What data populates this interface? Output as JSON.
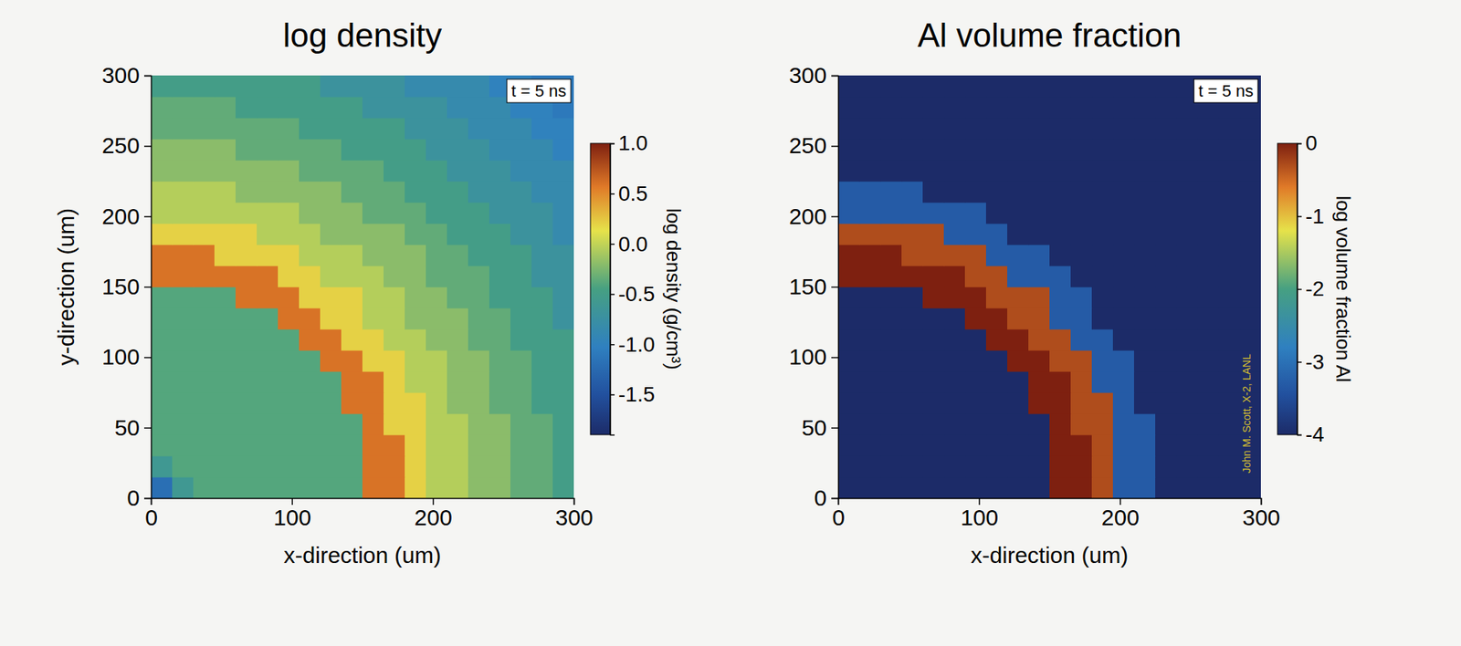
{
  "chart_data": [
    {
      "type": "heatmap",
      "title": "log density",
      "xlabel": "x-direction (um)",
      "ylabel": "y-direction (um)",
      "x": [
        7.5,
        22.5,
        37.5,
        52.5,
        67.5,
        82.5,
        97.5,
        112.5,
        127.5,
        142.5,
        157.5,
        172.5,
        187.5,
        202.5,
        217.5,
        232.5,
        247.5,
        262.5,
        277.5,
        292.5
      ],
      "y": [
        7.5,
        22.5,
        37.5,
        52.5,
        67.5,
        82.5,
        97.5,
        112.5,
        127.5,
        142.5,
        157.5,
        172.5,
        187.5,
        202.5,
        217.5,
        232.5,
        247.5,
        262.5,
        277.5,
        292.5
      ],
      "values": [
        [
          -1.2,
          -0.6,
          -0.4,
          -0.4,
          -0.4,
          -0.4,
          -0.4,
          -0.4,
          -0.4,
          -0.4,
          0.6,
          0.6,
          0.2,
          -0.05,
          -0.05,
          -0.2,
          -0.2,
          -0.35,
          -0.35,
          -0.5
        ],
        [
          -0.6,
          -0.4,
          -0.4,
          -0.4,
          -0.4,
          -0.4,
          -0.4,
          -0.4,
          -0.4,
          -0.4,
          0.6,
          0.6,
          0.2,
          -0.05,
          -0.05,
          -0.2,
          -0.2,
          -0.35,
          -0.35,
          -0.5
        ],
        [
          -0.4,
          -0.4,
          -0.4,
          -0.4,
          -0.4,
          -0.4,
          -0.4,
          -0.4,
          -0.4,
          -0.4,
          0.6,
          0.6,
          0.2,
          -0.05,
          -0.05,
          -0.2,
          -0.2,
          -0.35,
          -0.35,
          -0.5
        ],
        [
          -0.4,
          -0.4,
          -0.4,
          -0.4,
          -0.4,
          -0.4,
          -0.4,
          -0.4,
          -0.4,
          -0.4,
          0.6,
          0.2,
          0.2,
          -0.05,
          -0.05,
          -0.2,
          -0.2,
          -0.35,
          -0.35,
          -0.5
        ],
        [
          -0.4,
          -0.4,
          -0.4,
          -0.4,
          -0.4,
          -0.4,
          -0.4,
          -0.4,
          -0.4,
          0.6,
          0.6,
          0.2,
          0.2,
          -0.05,
          -0.2,
          -0.2,
          -0.35,
          -0.35,
          -0.5,
          -0.5
        ],
        [
          -0.4,
          -0.4,
          -0.4,
          -0.4,
          -0.4,
          -0.4,
          -0.4,
          -0.4,
          -0.4,
          0.6,
          0.6,
          0.2,
          -0.05,
          -0.05,
          -0.2,
          -0.2,
          -0.35,
          -0.35,
          -0.5,
          -0.5
        ],
        [
          -0.4,
          -0.4,
          -0.4,
          -0.4,
          -0.4,
          -0.4,
          -0.4,
          -0.4,
          0.6,
          0.6,
          0.2,
          0.2,
          -0.05,
          -0.05,
          -0.2,
          -0.2,
          -0.35,
          -0.35,
          -0.5,
          -0.5
        ],
        [
          -0.4,
          -0.4,
          -0.4,
          -0.4,
          -0.4,
          -0.4,
          -0.4,
          0.6,
          0.6,
          0.2,
          0.2,
          -0.05,
          -0.05,
          -0.2,
          -0.2,
          -0.35,
          -0.35,
          -0.5,
          -0.5,
          -0.5
        ],
        [
          -0.4,
          -0.4,
          -0.4,
          -0.4,
          -0.4,
          -0.4,
          0.6,
          0.6,
          0.2,
          0.2,
          -0.05,
          -0.05,
          -0.2,
          -0.2,
          -0.2,
          -0.35,
          -0.35,
          -0.5,
          -0.5,
          -0.7
        ],
        [
          -0.4,
          -0.4,
          -0.4,
          -0.4,
          0.6,
          0.6,
          0.6,
          0.2,
          0.2,
          0.2,
          -0.05,
          -0.05,
          -0.2,
          -0.2,
          -0.35,
          -0.35,
          -0.5,
          -0.5,
          -0.5,
          -0.7
        ],
        [
          0.6,
          0.6,
          0.6,
          0.6,
          0.6,
          0.6,
          0.2,
          0.2,
          -0.05,
          -0.05,
          -0.05,
          -0.2,
          -0.2,
          -0.35,
          -0.35,
          -0.35,
          -0.5,
          -0.5,
          -0.7,
          -0.7
        ],
        [
          0.6,
          0.6,
          0.6,
          0.2,
          0.2,
          0.2,
          0.2,
          -0.05,
          -0.05,
          -0.05,
          -0.2,
          -0.2,
          -0.2,
          -0.35,
          -0.35,
          -0.5,
          -0.5,
          -0.5,
          -0.7,
          -0.7
        ],
        [
          0.2,
          0.2,
          0.2,
          0.2,
          0.2,
          -0.05,
          -0.05,
          -0.05,
          -0.2,
          -0.2,
          -0.2,
          -0.2,
          -0.35,
          -0.35,
          -0.5,
          -0.5,
          -0.5,
          -0.7,
          -0.7,
          -0.85
        ],
        [
          -0.05,
          -0.05,
          -0.05,
          -0.05,
          -0.05,
          -0.05,
          -0.05,
          -0.2,
          -0.2,
          -0.2,
          -0.35,
          -0.35,
          -0.35,
          -0.5,
          -0.5,
          -0.5,
          -0.7,
          -0.7,
          -0.7,
          -0.85
        ],
        [
          -0.05,
          -0.05,
          -0.05,
          -0.05,
          -0.2,
          -0.2,
          -0.2,
          -0.2,
          -0.2,
          -0.35,
          -0.35,
          -0.35,
          -0.5,
          -0.5,
          -0.5,
          -0.7,
          -0.7,
          -0.7,
          -0.85,
          -0.85
        ],
        [
          -0.2,
          -0.2,
          -0.2,
          -0.2,
          -0.2,
          -0.2,
          -0.2,
          -0.35,
          -0.35,
          -0.35,
          -0.35,
          -0.5,
          -0.5,
          -0.5,
          -0.7,
          -0.7,
          -0.7,
          -0.85,
          -0.85,
          -0.85
        ],
        [
          -0.2,
          -0.2,
          -0.2,
          -0.2,
          -0.35,
          -0.35,
          -0.35,
          -0.35,
          -0.35,
          -0.5,
          -0.5,
          -0.5,
          -0.5,
          -0.7,
          -0.7,
          -0.7,
          -0.85,
          -0.85,
          -0.85,
          -1.0
        ],
        [
          -0.35,
          -0.35,
          -0.35,
          -0.35,
          -0.35,
          -0.35,
          -0.35,
          -0.5,
          -0.5,
          -0.5,
          -0.5,
          -0.5,
          -0.7,
          -0.7,
          -0.7,
          -0.85,
          -0.85,
          -0.85,
          -1.0,
          -1.0
        ],
        [
          -0.35,
          -0.35,
          -0.35,
          -0.35,
          -0.5,
          -0.5,
          -0.5,
          -0.5,
          -0.5,
          -0.5,
          -0.7,
          -0.7,
          -0.7,
          -0.7,
          -0.85,
          -0.85,
          -0.85,
          -1.0,
          -1.0,
          -1.1
        ],
        [
          -0.5,
          -0.5,
          -0.5,
          -0.5,
          -0.5,
          -0.5,
          -0.5,
          -0.5,
          -0.7,
          -0.7,
          -0.7,
          -0.7,
          -0.85,
          -0.85,
          -0.85,
          -0.85,
          -1.0,
          -1.0,
          -1.1,
          -1.1
        ]
      ],
      "xlim": [
        0,
        300
      ],
      "ylim": [
        0,
        300
      ],
      "xticks": [
        0,
        100,
        200,
        300
      ],
      "yticks": [
        0,
        50,
        100,
        150,
        200,
        250,
        300
      ],
      "colorbar": {
        "title": "log density (g/cm³)",
        "range": [
          -1.9,
          1.0
        ],
        "ticks": [
          {
            "value": 1,
            "label": "1.0"
          },
          0.5,
          {
            "value": 0,
            "label": "0.0"
          },
          -0.5,
          {
            "value": -1,
            "label": "-1.0"
          },
          -1.5
        ]
      },
      "annotations": [
        "t = 5 ns"
      ]
    },
    {
      "type": "heatmap",
      "title": "Al volume fraction",
      "xlabel": "x-direction (um)",
      "x": [
        7.5,
        22.5,
        37.5,
        52.5,
        67.5,
        82.5,
        97.5,
        112.5,
        127.5,
        142.5,
        157.5,
        172.5,
        187.5,
        202.5,
        217.5,
        232.5,
        247.5,
        262.5,
        277.5,
        292.5
      ],
      "y": [
        7.5,
        22.5,
        37.5,
        52.5,
        67.5,
        82.5,
        97.5,
        112.5,
        127.5,
        142.5,
        157.5,
        172.5,
        187.5,
        202.5,
        217.5,
        232.5,
        247.5,
        262.5,
        277.5,
        292.5
      ],
      "values": [
        [
          -4,
          -4,
          -4,
          -4,
          -4,
          -4,
          -4,
          -4,
          -4,
          -4,
          0,
          0,
          -0.3,
          -3.3,
          -3.3,
          -4,
          -4,
          -4,
          -4,
          -4
        ],
        [
          -4,
          -4,
          -4,
          -4,
          -4,
          -4,
          -4,
          -4,
          -4,
          -4,
          0,
          0,
          -0.3,
          -3.3,
          -3.3,
          -4,
          -4,
          -4,
          -4,
          -4
        ],
        [
          -4,
          -4,
          -4,
          -4,
          -4,
          -4,
          -4,
          -4,
          -4,
          -4,
          0,
          0,
          -0.3,
          -3.3,
          -3.3,
          -4,
          -4,
          -4,
          -4,
          -4
        ],
        [
          -4,
          -4,
          -4,
          -4,
          -4,
          -4,
          -4,
          -4,
          -4,
          -4,
          0,
          -0.3,
          -0.3,
          -3.3,
          -3.3,
          -4,
          -4,
          -4,
          -4,
          -4
        ],
        [
          -4,
          -4,
          -4,
          -4,
          -4,
          -4,
          -4,
          -4,
          -4,
          0,
          0,
          -0.3,
          -0.3,
          -3.3,
          -4,
          -4,
          -4,
          -4,
          -4,
          -4
        ],
        [
          -4,
          -4,
          -4,
          -4,
          -4,
          -4,
          -4,
          -4,
          -4,
          0,
          0,
          -0.3,
          -3.3,
          -3.3,
          -4,
          -4,
          -4,
          -4,
          -4,
          -4
        ],
        [
          -4,
          -4,
          -4,
          -4,
          -4,
          -4,
          -4,
          -4,
          0,
          0,
          -0.3,
          -0.3,
          -3.3,
          -3.3,
          -4,
          -4,
          -4,
          -4,
          -4,
          -4
        ],
        [
          -4,
          -4,
          -4,
          -4,
          -4,
          -4,
          -4,
          0,
          0,
          -0.3,
          -0.3,
          -3.3,
          -3.3,
          -4,
          -4,
          -4,
          -4,
          -4,
          -4,
          -4
        ],
        [
          -4,
          -4,
          -4,
          -4,
          -4,
          -4,
          0,
          0,
          -0.3,
          -0.3,
          -3.3,
          -3.3,
          -4,
          -4,
          -4,
          -4,
          -4,
          -4,
          -4,
          -4
        ],
        [
          -4,
          -4,
          -4,
          -4,
          0,
          0,
          0,
          -0.3,
          -0.3,
          -0.3,
          -3.3,
          -3.3,
          -4,
          -4,
          -4,
          -4,
          -4,
          -4,
          -4,
          -4
        ],
        [
          0,
          0,
          0,
          0,
          0,
          0,
          -0.3,
          -0.3,
          -3.3,
          -3.3,
          -3.3,
          -4,
          -4,
          -4,
          -4,
          -4,
          -4,
          -4,
          -4,
          -4
        ],
        [
          0,
          0,
          0,
          -0.3,
          -0.3,
          -0.3,
          -0.3,
          -3.3,
          -3.3,
          -3.3,
          -4,
          -4,
          -4,
          -4,
          -4,
          -4,
          -4,
          -4,
          -4,
          -4
        ],
        [
          -0.3,
          -0.3,
          -0.3,
          -0.3,
          -0.3,
          -3.3,
          -3.3,
          -3.3,
          -4,
          -4,
          -4,
          -4,
          -4,
          -4,
          -4,
          -4,
          -4,
          -4,
          -4,
          -4
        ],
        [
          -3.3,
          -3.3,
          -3.3,
          -3.3,
          -3.3,
          -3.3,
          -3.3,
          -4,
          -4,
          -4,
          -4,
          -4,
          -4,
          -4,
          -4,
          -4,
          -4,
          -4,
          -4,
          -4
        ],
        [
          -3.3,
          -3.3,
          -3.3,
          -3.3,
          -4,
          -4,
          -4,
          -4,
          -4,
          -4,
          -4,
          -4,
          -4,
          -4,
          -4,
          -4,
          -4,
          -4,
          -4,
          -4
        ],
        [
          -4,
          -4,
          -4,
          -4,
          -4,
          -4,
          -4,
          -4,
          -4,
          -4,
          -4,
          -4,
          -4,
          -4,
          -4,
          -4,
          -4,
          -4,
          -4,
          -4
        ],
        [
          -4,
          -4,
          -4,
          -4,
          -4,
          -4,
          -4,
          -4,
          -4,
          -4,
          -4,
          -4,
          -4,
          -4,
          -4,
          -4,
          -4,
          -4,
          -4,
          -4
        ],
        [
          -4,
          -4,
          -4,
          -4,
          -4,
          -4,
          -4,
          -4,
          -4,
          -4,
          -4,
          -4,
          -4,
          -4,
          -4,
          -4,
          -4,
          -4,
          -4,
          -4
        ],
        [
          -4,
          -4,
          -4,
          -4,
          -4,
          -4,
          -4,
          -4,
          -4,
          -4,
          -4,
          -4,
          -4,
          -4,
          -4,
          -4,
          -4,
          -4,
          -4,
          -4
        ],
        [
          -4,
          -4,
          -4,
          -4,
          -4,
          -4,
          -4,
          -4,
          -4,
          -4,
          -4,
          -4,
          -4,
          -4,
          -4,
          -4,
          -4,
          -4,
          -4,
          -4
        ]
      ],
      "xlim": [
        0,
        300
      ],
      "ylim": [
        0,
        300
      ],
      "xticks": [
        0,
        100,
        200,
        300
      ],
      "yticks": [
        0,
        50,
        100,
        150,
        200,
        250,
        300
      ],
      "colorbar": {
        "title": "log volume fraction Al",
        "range": [
          -4,
          0
        ],
        "ticks": [
          0,
          -1,
          -2,
          -3,
          -4
        ]
      },
      "annotations": [
        "t = 5 ns",
        "John M. Scott, X-2, LANL"
      ]
    }
  ]
}
